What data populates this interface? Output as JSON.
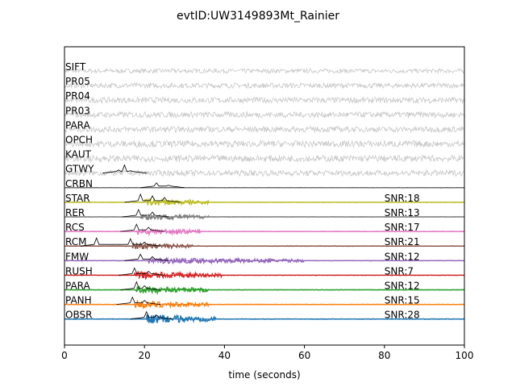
{
  "chart_data": {
    "type": "line",
    "title": "evtID:UW3149893Mt_Rainier",
    "xlabel": "time (seconds)",
    "ylabel": "",
    "xlim": [
      0,
      100
    ],
    "x_ticks": [
      "0",
      "20",
      "40",
      "60",
      "80",
      "100"
    ],
    "grid": false,
    "series": [
      {
        "name": "SIFT",
        "color": "#c8c8c8",
        "style": "noise",
        "amp": 0.3,
        "snr": ""
      },
      {
        "name": "PR05",
        "color": "#c8c8c8",
        "style": "noise",
        "amp": 0.35,
        "snr": ""
      },
      {
        "name": "PR04",
        "color": "#c8c8c8",
        "style": "noise",
        "amp": 0.4,
        "snr": ""
      },
      {
        "name": "PR03",
        "color": "#c8c8c8",
        "style": "noise",
        "amp": 0.4,
        "snr": ""
      },
      {
        "name": "PARA",
        "color": "#c8c8c8",
        "style": "noise",
        "amp": 0.4,
        "snr": ""
      },
      {
        "name": "OPCH",
        "color": "#c8c8c8",
        "style": "noise",
        "amp": 0.45,
        "snr": ""
      },
      {
        "name": "KAUT",
        "color": "#c8c8c8",
        "style": "noise",
        "amp": 0.45,
        "snr": ""
      },
      {
        "name": "GTWY",
        "color": "#c8c8c8",
        "style": "noise",
        "amp": 0.4,
        "snr": "",
        "envelope": [
          [
            13.5,
            0.4
          ],
          [
            15,
            1.0
          ],
          [
            16.5,
            0.3
          ]
        ]
      },
      {
        "name": "CRBN",
        "color": "#555555",
        "style": "flat",
        "amp": 0.05,
        "snr": "",
        "envelope": [
          [
            23,
            0.6
          ],
          [
            26,
            0.3
          ]
        ]
      },
      {
        "name": "STAR",
        "color": "#bcbd22",
        "style": "event",
        "amp": 0.55,
        "onset": 20,
        "coda": 36,
        "snr": "SNR:18",
        "envelope": [
          [
            19,
            1.0
          ],
          [
            22,
            0.8
          ],
          [
            25,
            0.6
          ]
        ]
      },
      {
        "name": "RER",
        "color": "#7f7f7f",
        "style": "event",
        "amp": 0.5,
        "onset": 19,
        "coda": 36,
        "snr": "SNR:13",
        "envelope": [
          [
            18.5,
            0.9
          ],
          [
            22,
            0.6
          ]
        ]
      },
      {
        "name": "RCS",
        "color": "#e377c2",
        "style": "event",
        "amp": 0.55,
        "onset": 18,
        "coda": 34,
        "snr": "SNR:17",
        "envelope": [
          [
            18,
            0.9
          ],
          [
            21,
            0.5
          ]
        ]
      },
      {
        "name": "RCM",
        "color": "#8c564b",
        "style": "event",
        "amp": 0.5,
        "onset": 17,
        "coda": 32,
        "snr": "SNR:21",
        "envelope": [
          [
            8,
            1.0
          ],
          [
            16.5,
            0.9
          ],
          [
            20,
            0.5
          ]
        ]
      },
      {
        "name": "FMW",
        "color": "#9467bd",
        "style": "event",
        "amp": 0.45,
        "onset": 21,
        "coda": 60,
        "snr": "SNR:12",
        "envelope": [
          [
            19,
            0.8
          ],
          [
            22,
            0.5
          ]
        ]
      },
      {
        "name": "RUSH",
        "color": "#d62728",
        "style": "event",
        "amp": 0.55,
        "onset": 17.5,
        "coda": 40,
        "snr": "SNR:7",
        "envelope": [
          [
            17.5,
            0.9
          ],
          [
            21,
            0.5
          ]
        ]
      },
      {
        "name": "PARA",
        "color": "#2ca02c",
        "style": "event",
        "amp": 0.6,
        "onset": 18,
        "coda": 36,
        "snr": "SNR:12",
        "envelope": [
          [
            18,
            1.0
          ],
          [
            20,
            0.5
          ]
        ]
      },
      {
        "name": "PANH",
        "color": "#ff7f0e",
        "style": "event",
        "amp": 0.55,
        "onset": 17.5,
        "coda": 36,
        "snr": "SNR:15",
        "envelope": [
          [
            17,
            0.9
          ],
          [
            20,
            0.5
          ]
        ]
      },
      {
        "name": "OBSR",
        "color": "#1f77b4",
        "style": "event",
        "amp": 0.7,
        "onset": 20.5,
        "coda": 38,
        "snr": "SNR:28",
        "envelope": [
          [
            20.5,
            0.9
          ],
          [
            23,
            0.5
          ]
        ]
      }
    ]
  }
}
